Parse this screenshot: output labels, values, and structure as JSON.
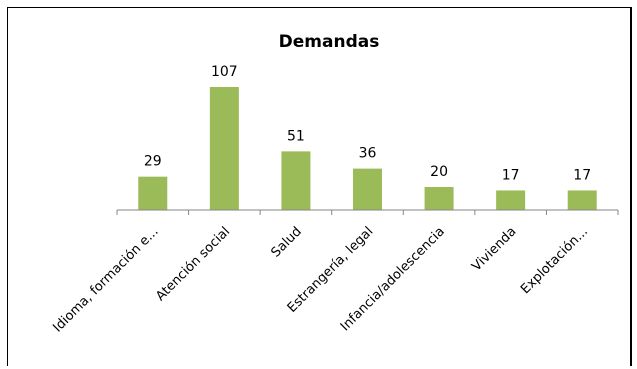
{
  "chart_data": {
    "type": "bar",
    "title": "Demandas",
    "categories": [
      "Idioma, formación e...",
      "Atención social",
      "Salud",
      "Estrangería, legal",
      "Infancia/adolescencia",
      "Vivienda",
      "Explotación..."
    ],
    "values": [
      29,
      107,
      51,
      36,
      20,
      17,
      17
    ],
    "xlabel": "",
    "ylabel": "",
    "ylim": [
      0,
      107
    ],
    "grid": false,
    "legend": "none",
    "bar_color": "#9BBB59",
    "axis_color": "#868686"
  }
}
